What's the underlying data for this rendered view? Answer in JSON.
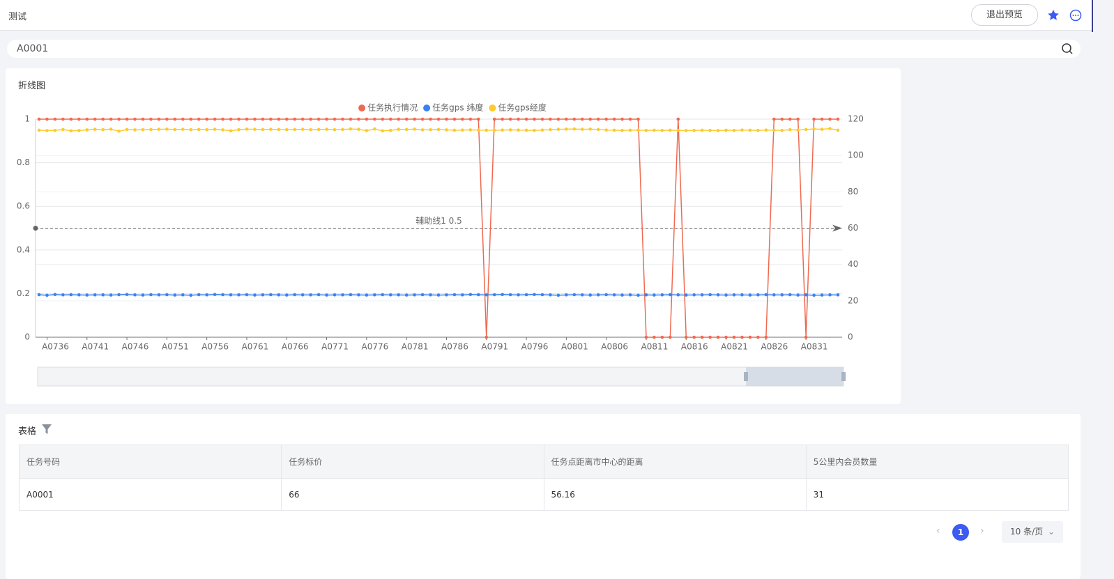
{
  "header": {
    "title": "测试",
    "exit_button": "退出预览"
  },
  "search": {
    "value": "A0001"
  },
  "chart_data": {
    "type": "line",
    "title": "折线图",
    "categories": [
      null,
      "A0736",
      null,
      null,
      null,
      null,
      "A0741",
      null,
      null,
      null,
      null,
      "A0746",
      null,
      null,
      null,
      null,
      "A0751",
      null,
      null,
      null,
      null,
      "A0756",
      null,
      null,
      null,
      null,
      "A0761",
      null,
      null,
      null,
      null,
      "A0766",
      null,
      null,
      null,
      null,
      "A0771",
      null,
      null,
      null,
      null,
      "A0776",
      null,
      null,
      null,
      null,
      "A0781",
      null,
      null,
      null,
      null,
      "A0786",
      null,
      null,
      null,
      null,
      "A0791",
      null,
      null,
      null,
      null,
      "A0796",
      null,
      null,
      null,
      null,
      "A0801",
      null,
      null,
      null,
      null,
      "A0806",
      null,
      null,
      null,
      null,
      "A0811",
      null,
      null,
      null,
      null,
      "A0816",
      null,
      null,
      null,
      null,
      "A0821",
      null,
      null,
      null,
      null,
      "A0826",
      null,
      null,
      null,
      null,
      "A0831",
      null,
      null,
      null,
      null
    ],
    "series": [
      {
        "name": "任务执行情况",
        "color": "#ee6a50",
        "values": [
          1,
          1,
          1,
          1,
          1,
          1,
          1,
          1,
          1,
          1,
          1,
          1,
          1,
          1,
          1,
          1,
          1,
          1,
          1,
          1,
          1,
          1,
          1,
          1,
          1,
          1,
          1,
          1,
          1,
          1,
          1,
          1,
          1,
          1,
          1,
          1,
          1,
          1,
          1,
          1,
          1,
          1,
          1,
          1,
          1,
          1,
          1,
          1,
          1,
          1,
          1,
          1,
          1,
          1,
          1,
          1,
          0,
          1,
          1,
          1,
          1,
          1,
          1,
          1,
          1,
          1,
          1,
          1,
          1,
          1,
          1,
          1,
          1,
          1,
          1,
          1,
          0,
          0,
          0,
          0,
          1,
          0,
          0,
          0,
          0,
          0,
          0,
          0,
          0,
          0,
          0,
          0,
          1,
          1,
          1,
          1,
          0,
          1,
          1,
          1,
          1
        ]
      },
      {
        "name": "任务gps 纬度",
        "color": "#3b82f0",
        "axis": "y2",
        "values": [
          23.4,
          23.1,
          23.5,
          23.3,
          23.4,
          23.3,
          23.2,
          23.3,
          23.3,
          23.2,
          23.4,
          23.5,
          23.3,
          23.2,
          23.4,
          23.3,
          23.4,
          23.2,
          23.3,
          23.1,
          23.4,
          23.3,
          23.5,
          23.4,
          23.3,
          23.3,
          23.4,
          23.2,
          23.3,
          23.4,
          23.3,
          23.2,
          23.4,
          23.3,
          23.3,
          23.4,
          23.2,
          23.3,
          23.3,
          23.4,
          23.3,
          23.2,
          23.3,
          23.4,
          23.3,
          23.3,
          23.2,
          23.3,
          23.4,
          23.3,
          23.2,
          23.3,
          23.4,
          23.3,
          23.5,
          23.4,
          23.3,
          23.4,
          23.5,
          23.4,
          23.3,
          23.4,
          23.5,
          23.4,
          23.3,
          23.1,
          23.3,
          23.4,
          23.3,
          23.2,
          23.3,
          23.4,
          23.3,
          23.2,
          23.3,
          23.1,
          23.3,
          23.2,
          23.3,
          23.4,
          23.3,
          23.2,
          23.3,
          23.3,
          23.4,
          23.3,
          23.2,
          23.3,
          23.3,
          23.2,
          23.3,
          23.4,
          23.3,
          23.3,
          23.4,
          23.2,
          23.3,
          23.1,
          23.2,
          23.3,
          23.3
        ]
      },
      {
        "name": "任务gps经度",
        "color": "#fccb2d",
        "axis": "y2",
        "values": [
          113.9,
          113.7,
          113.8,
          114.3,
          113.6,
          113.7,
          114.1,
          114.4,
          114.2,
          114.5,
          113.4,
          114.3,
          114.1,
          114.2,
          114.3,
          114.4,
          114.5,
          114.3,
          114.4,
          114.2,
          114.3,
          114.2,
          114.4,
          114.1,
          113.6,
          114.2,
          114.5,
          114.4,
          114.3,
          114.4,
          114.3,
          114.2,
          114.3,
          114.4,
          114.2,
          114.3,
          114.4,
          114.2,
          114.3,
          114.6,
          114.4,
          113.7,
          114.6,
          113.6,
          113.8,
          114.4,
          114.3,
          114.5,
          114.1,
          114.2,
          114.3,
          114.1,
          113.9,
          114.0,
          114.1,
          114.0,
          113.9,
          113.9,
          114.0,
          114.1,
          114.0,
          113.9,
          113.8,
          114.0,
          114.2,
          114.4,
          114.5,
          114.6,
          114.4,
          114.5,
          114.3,
          114.0,
          113.9,
          113.8,
          113.9,
          114.0,
          113.8,
          113.9,
          113.8,
          113.9,
          113.8,
          113.7,
          113.8,
          113.9,
          113.8,
          113.7,
          113.9,
          113.8,
          114.0,
          113.9,
          113.8,
          114.0,
          113.9,
          113.8,
          114.2,
          114.0,
          114.3,
          114.6,
          114.4,
          114.8,
          113.9
        ]
      }
    ],
    "ylim": [
      0,
      1
    ],
    "yticks": [
      0,
      0.2,
      0.4,
      0.6,
      0.8,
      1
    ],
    "y2lim": [
      0,
      120
    ],
    "y2ticks": [
      0,
      20,
      40,
      60,
      80,
      100,
      120
    ],
    "grid": true,
    "mark_line": {
      "value": 0.5,
      "label": "辅助线1 0.5"
    }
  },
  "table": {
    "title": "表格",
    "columns": [
      "任务号码",
      "任务标价",
      "任务点距离市中心的距离",
      "5公里内会员数量"
    ],
    "rows": [
      [
        "A0001",
        66,
        56.16,
        31
      ]
    ]
  },
  "pagination": {
    "current": 1,
    "page_size": "10 条/页"
  }
}
